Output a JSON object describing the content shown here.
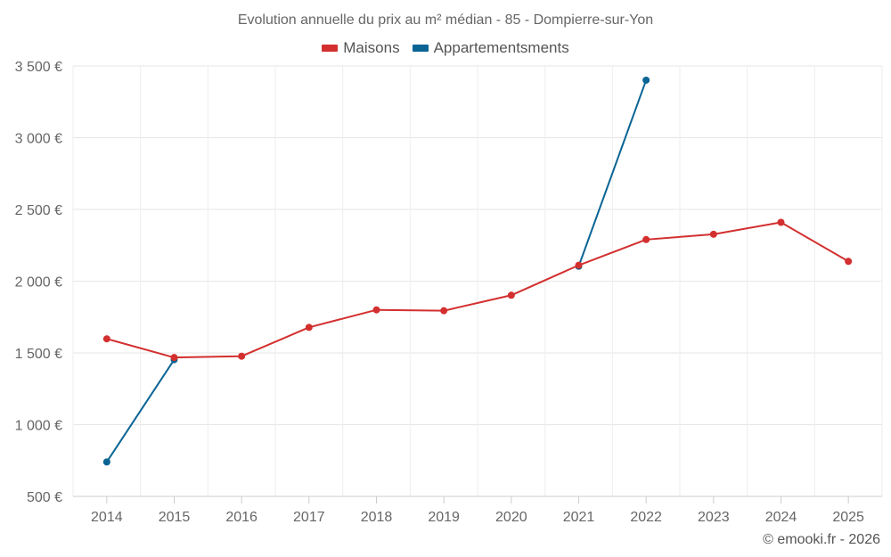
{
  "chart_data": {
    "type": "line",
    "title": "Evolution annuelle du prix au m² médian - 85 - Dompierre-sur-Yon",
    "categories": [
      "2014",
      "2015",
      "2016",
      "2017",
      "2018",
      "2019",
      "2020",
      "2021",
      "2022",
      "2023",
      "2024",
      "2025"
    ],
    "series": [
      {
        "name": "Maisons",
        "color": "#d32f2f",
        "values": [
          1598,
          1468,
          1477,
          1678,
          1800,
          1794,
          1902,
          2111,
          2290,
          2327,
          2410,
          2138
        ]
      },
      {
        "name": "Appartementsments",
        "color": "#0a6494",
        "values": [
          740,
          1453,
          null,
          null,
          null,
          null,
          null,
          2104,
          3401,
          null,
          null,
          null
        ]
      }
    ],
    "ylim": [
      500,
      3500
    ],
    "yticks": [
      500,
      1000,
      1500,
      2000,
      2500,
      3000,
      3500
    ],
    "ytick_labels": [
      "500 €",
      "1 000 €",
      "1 500 €",
      "2 000 €",
      "2 500 €",
      "3 000 €",
      "3 500 €"
    ],
    "grid": true,
    "legend_position": "top-center",
    "xlabel": "",
    "ylabel": ""
  },
  "credit": "© emooki.fr - 2026"
}
